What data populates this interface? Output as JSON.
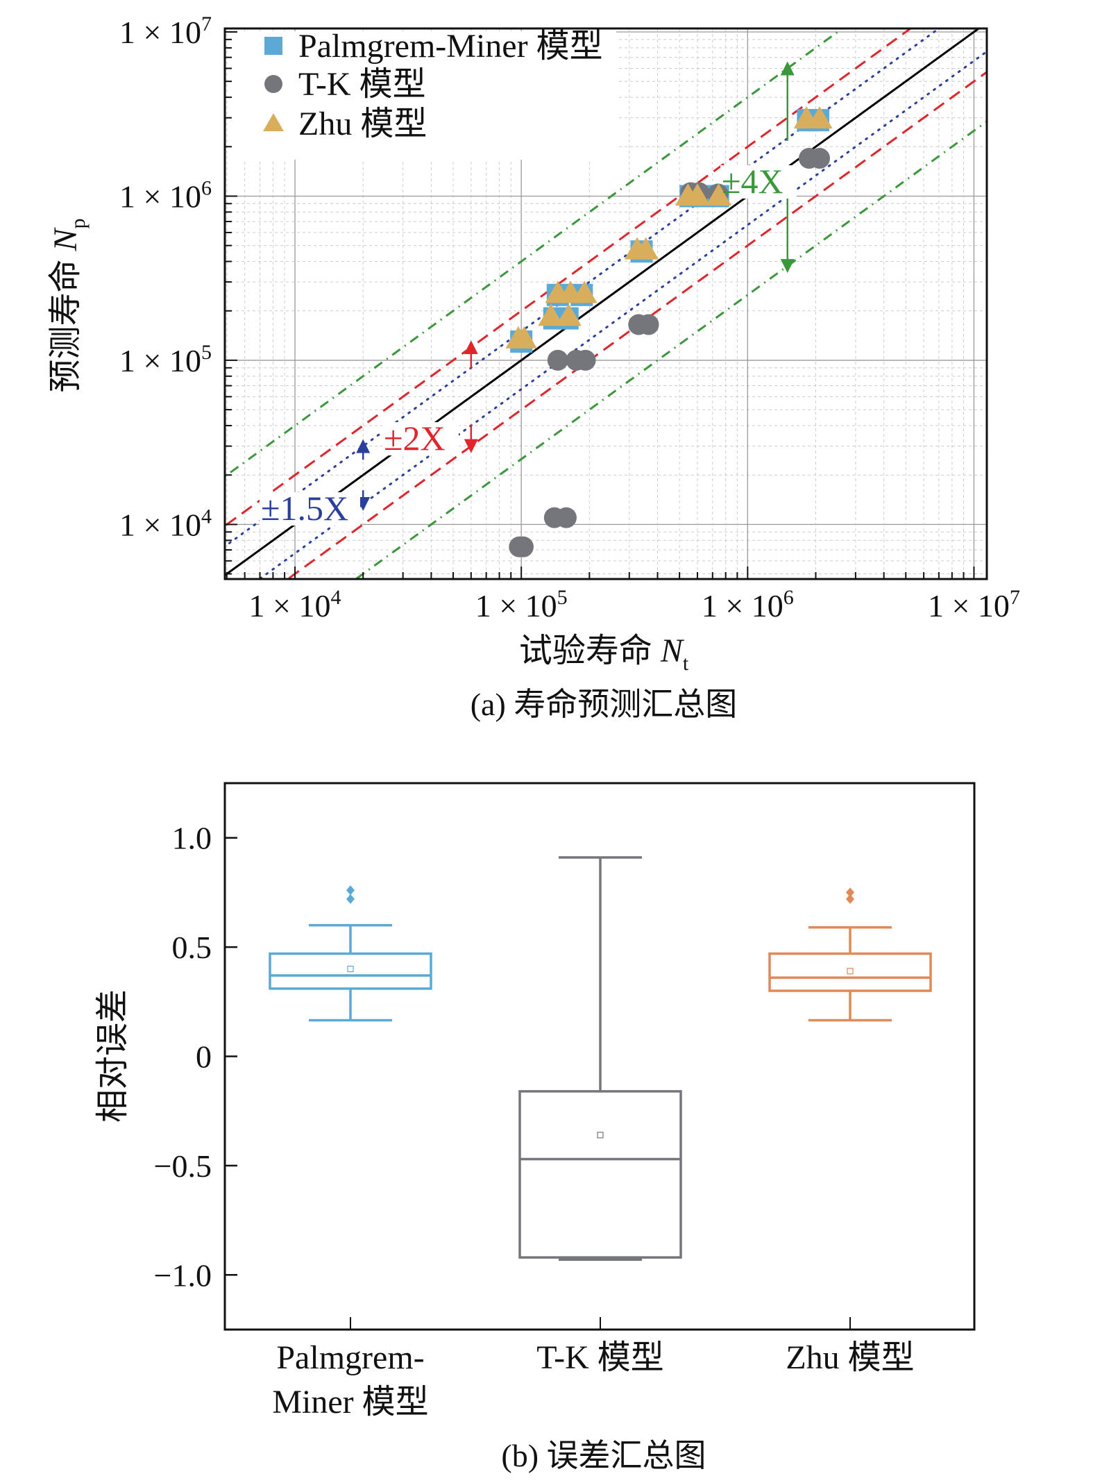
{
  "colors": {
    "pm": "#5aa9d6",
    "tk": "#75767c",
    "zhu": "#d8ae5c",
    "orange": "#e08a58",
    "red": "#e0252b",
    "green": "#3a983a",
    "blue": "#2a3f9c"
  },
  "chart_data": [
    {
      "type": "scatter",
      "title": "(a) 寿命预测汇总图",
      "xlabel": "试验寿命",
      "xlabel_var": "N",
      "xlabel_sub": "t",
      "ylabel": "预测寿命",
      "ylabel_var": "N",
      "ylabel_sub": "p",
      "xscale": "log",
      "yscale": "log",
      "xlim": [
        4900,
        11400000
      ],
      "ylim": [
        4650,
        10500000
      ],
      "xticks": [
        {
          "v": 10000,
          "base": "1 × 10",
          "exp": "4"
        },
        {
          "v": 100000,
          "base": "1 × 10",
          "exp": "5"
        },
        {
          "v": 1000000,
          "base": "1 × 10",
          "exp": "6"
        },
        {
          "v": 10000000,
          "base": "1 × 10",
          "exp": "7"
        }
      ],
      "yticks": [
        {
          "v": 10000,
          "base": "1 × 10",
          "exp": "4"
        },
        {
          "v": 100000,
          "base": "1 × 10",
          "exp": "5"
        },
        {
          "v": 1000000,
          "base": "1 × 10",
          "exp": "6"
        },
        {
          "v": 10000000,
          "base": "1 × 10",
          "exp": "7"
        }
      ],
      "grid": true,
      "legend_position": "top-left",
      "legend": [
        "Palmgrem-Miner 模型",
        "T-K 模型",
        "Zhu 模型"
      ],
      "series": [
        {
          "name": "Palmgrem-Miner 模型",
          "marker": "square",
          "points": [
            [
              100000,
              130000
            ],
            [
              140000,
              180000
            ],
            [
              160000,
              180000
            ],
            [
              145000,
              250000
            ],
            [
              185000,
              250000
            ],
            [
              340000,
              460000
            ],
            [
              560000,
              1000000
            ],
            [
              610000,
              1000000
            ],
            [
              740000,
              1000000
            ],
            [
              1850000,
              2900000
            ],
            [
              2050000,
              2900000
            ]
          ]
        },
        {
          "name": "T-K 模型",
          "marker": "circle",
          "points": [
            [
              98000,
              7300
            ],
            [
              102000,
              7300
            ],
            [
              140000,
              11000
            ],
            [
              158000,
              11000
            ],
            [
              145000,
              100000
            ],
            [
              175000,
              100000
            ],
            [
              192000,
              100000
            ],
            [
              330000,
              165000
            ],
            [
              365000,
              165000
            ],
            [
              560000,
              1050000
            ],
            [
              610000,
              1050000
            ],
            [
              740000,
              1030000
            ],
            [
              1870000,
              1700000
            ],
            [
              2080000,
              1700000
            ]
          ]
        },
        {
          "name": "Zhu 模型",
          "marker": "triangle",
          "points": [
            [
              97000,
              135000
            ],
            [
              103000,
              135000
            ],
            [
              135000,
              185000
            ],
            [
              162000,
              185000
            ],
            [
              145000,
              255000
            ],
            [
              165000,
              255000
            ],
            [
              190000,
              255000
            ],
            [
              325000,
              470000
            ],
            [
              355000,
              470000
            ],
            [
              545000,
              1000000
            ],
            [
              600000,
              1000000
            ],
            [
              745000,
              1000000
            ],
            [
              1820000,
              2950000
            ],
            [
              2080000,
              2950000
            ]
          ]
        }
      ],
      "bands": [
        {
          "factor": 1,
          "style": "solid",
          "color": "#000000"
        },
        {
          "factor": 1.5,
          "style": "dotted",
          "color": "#2a3f9c",
          "label": "±1.5X",
          "arrow_x": 20000
        },
        {
          "factor": 2,
          "style": "dashed",
          "color": "#e0252b",
          "label": "±2X",
          "arrow_x": 60000
        },
        {
          "factor": 4,
          "style": "dashdot",
          "color": "#3a983a",
          "label": "±4X",
          "arrow_x": 1500000
        }
      ]
    },
    {
      "type": "box",
      "title": "(b) 误差汇总图",
      "ylabel": "相对误差",
      "ylim": [
        -1.25,
        1.25
      ],
      "yticks": [
        {
          "v": 1.0,
          "label": "1.0"
        },
        {
          "v": 0.5,
          "label": "0.5"
        },
        {
          "v": 0,
          "label": "0"
        },
        {
          "v": -0.5,
          "label": "−0.5"
        },
        {
          "v": -1.0,
          "label": "−1.0"
        }
      ],
      "categories": [
        [
          "Palmgrem-",
          "Miner 模型"
        ],
        [
          "T-K 模型"
        ],
        [
          "Zhu 模型"
        ]
      ],
      "series": [
        {
          "name": "Palmgrem-Miner 模型",
          "color": "#5aa9d6",
          "whisker_high": 0.6,
          "q3": 0.47,
          "median": 0.37,
          "q1": 0.31,
          "whisker_low": 0.165,
          "mean": 0.4,
          "outliers": [
            0.76,
            0.72
          ]
        },
        {
          "name": "T-K 模型",
          "color": "#75767c",
          "whisker_high": 0.91,
          "q3": -0.16,
          "median": -0.47,
          "q1": -0.92,
          "whisker_low": -0.93,
          "mean": -0.36,
          "outliers": []
        },
        {
          "name": "Zhu 模型",
          "color": "#e08a58",
          "whisker_high": 0.59,
          "q3": 0.47,
          "median": 0.36,
          "q1": 0.3,
          "whisker_low": 0.165,
          "mean": 0.39,
          "outliers": [
            0.75,
            0.72
          ]
        }
      ]
    }
  ]
}
